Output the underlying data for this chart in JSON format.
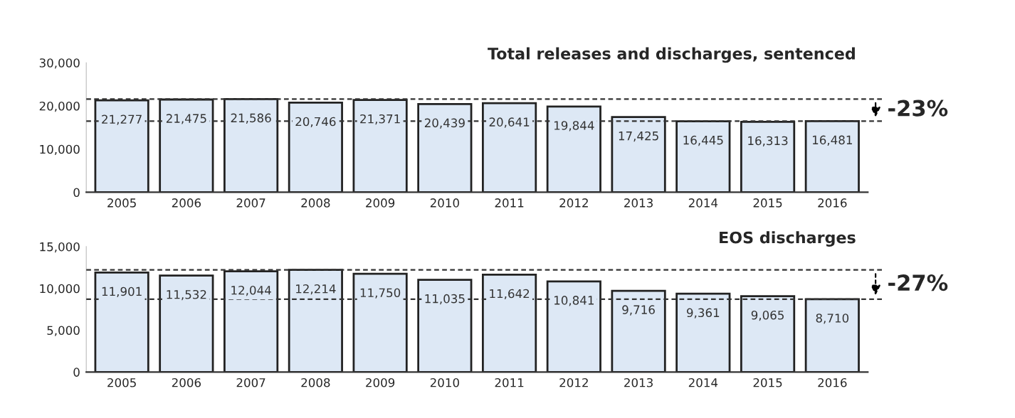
{
  "chart_data": [
    {
      "type": "bar",
      "title": "Total releases and discharges, sentenced",
      "categories": [
        "2005",
        "2006",
        "2007",
        "2008",
        "2009",
        "2010",
        "2011",
        "2012",
        "2013",
        "2014",
        "2015",
        "2016"
      ],
      "series": [
        {
          "color": "#dde8f5",
          "values": [
            21277,
            21475,
            21586,
            20746,
            21371,
            20439,
            20641,
            19844,
            17425,
            16445,
            16313,
            16481
          ]
        }
      ],
      "ylim": [
        0,
        30000
      ],
      "yticks": [
        {
          "value": 0,
          "label": "0"
        },
        {
          "value": 10000,
          "label": "10,000"
        },
        {
          "value": 20000,
          "label": "20,000"
        },
        {
          "value": 30000,
          "label": "30,000"
        }
      ],
      "value_labels": [
        "21,277",
        "21,475",
        "21,586",
        "20,746",
        "21,371",
        "20,439",
        "20,641",
        "19,844",
        "17,425",
        "16,445",
        "16,313",
        "16,481"
      ],
      "ref_lines": [
        {
          "axis": "y",
          "value": 21586,
          "line_style": "dashed",
          "color": "#333333"
        },
        {
          "axis": "y",
          "value": 16481,
          "line_style": "dashed",
          "color": "#333333"
        }
      ],
      "annotations": [
        "-23%"
      ],
      "grid": false,
      "legend": false
    },
    {
      "type": "bar",
      "title": "EOS discharges",
      "categories": [
        "2005",
        "2006",
        "2007",
        "2008",
        "2009",
        "2010",
        "2011",
        "2012",
        "2013",
        "2014",
        "2015",
        "2016"
      ],
      "series": [
        {
          "color": "#dde8f5",
          "values": [
            11901,
            11532,
            12044,
            12214,
            11750,
            11035,
            11642,
            10841,
            9716,
            9361,
            9065,
            8710
          ]
        }
      ],
      "ylim": [
        0,
        15000
      ],
      "yticks": [
        {
          "value": 0,
          "label": "0"
        },
        {
          "value": 5000,
          "label": "5,000"
        },
        {
          "value": 10000,
          "label": "10,000"
        },
        {
          "value": 15000,
          "label": "15,000"
        }
      ],
      "value_labels": [
        "11,901",
        "11,532",
        "12,044",
        "12,214",
        "11,750",
        "11,035",
        "11,642",
        "10,841",
        "9,716",
        "9,361",
        "9,065",
        "8,710"
      ],
      "ref_lines": [
        {
          "axis": "y",
          "value": 12214,
          "line_style": "dashed",
          "color": "#333333"
        },
        {
          "axis": "y",
          "value": 8710,
          "line_style": "dashed",
          "color": "#333333"
        }
      ],
      "annotations": [
        "-27%"
      ],
      "grid": false,
      "legend": false
    }
  ]
}
